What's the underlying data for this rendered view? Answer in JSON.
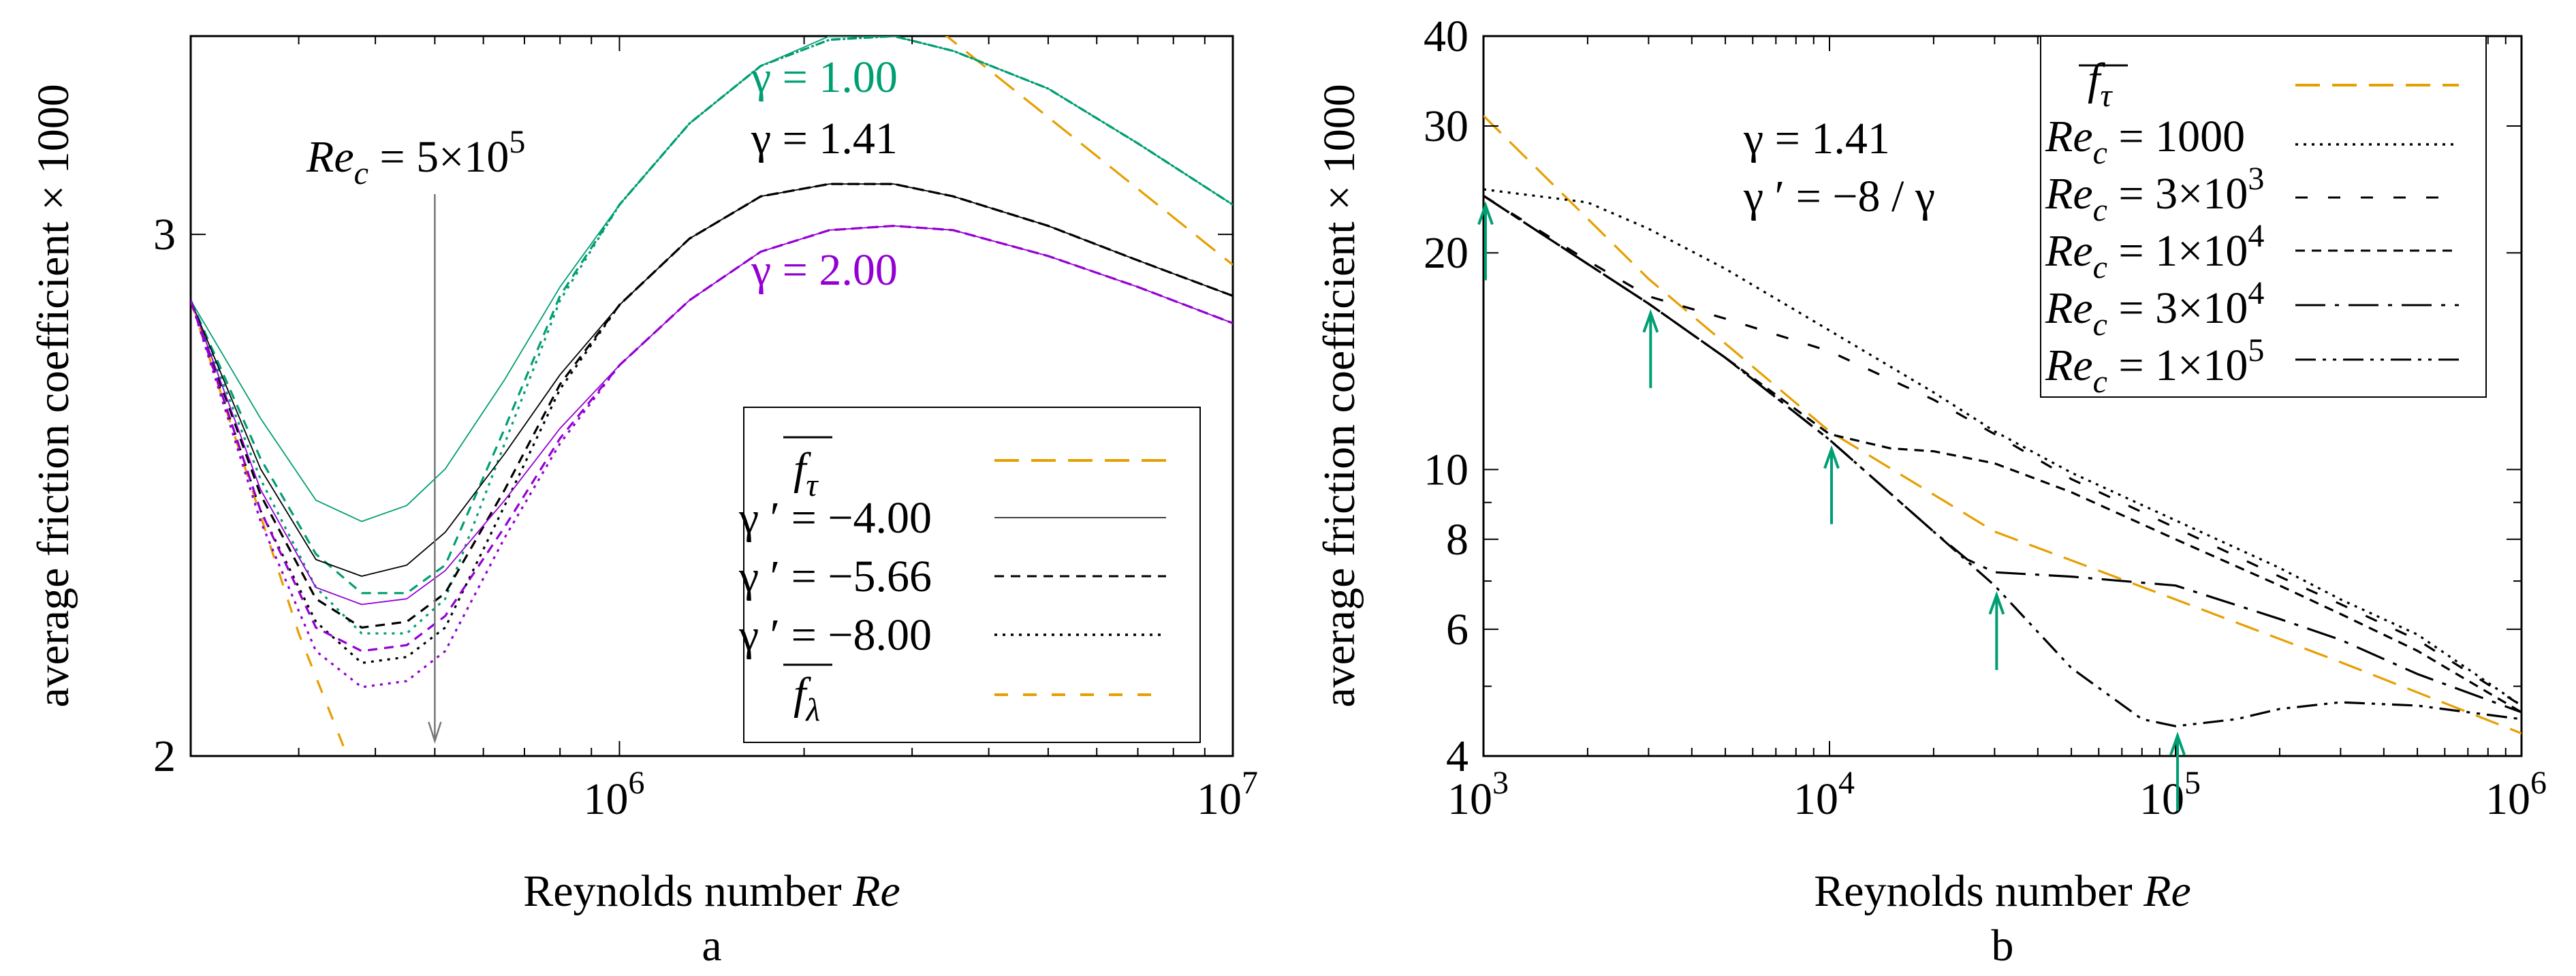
{
  "colors": {
    "orange": "#e69f00",
    "green": "#009e73",
    "purple": "#9400d3",
    "black": "#000000",
    "arrow_green": "#009e73",
    "gray": "#777777"
  },
  "chart_data": [
    {
      "id": "a",
      "type": "line",
      "panel_label": "a",
      "xlabel_text": "Reynolds number ",
      "xlabel_symbol": "Re",
      "ylabel": "average friction coefficient × 1000",
      "xscale": "log",
      "yscale": "log",
      "xlim": [
        200000,
        10000000
      ],
      "ylim": [
        2.0,
        3.5
      ],
      "xtick_labels": [
        {
          "value": 1000000,
          "base": "10",
          "exp": "6"
        },
        {
          "value": 10000000,
          "base": "10",
          "exp": "7"
        }
      ],
      "ytick_labels": [
        {
          "value": 2,
          "label": "2"
        },
        {
          "value": 3,
          "label": "3"
        }
      ],
      "transition_marker": {
        "x": 500000,
        "label_sym": "Re",
        "label_sub": "c",
        "label_rest": " = 5×10",
        "label_exp": "5"
      },
      "gamma_labels": [
        {
          "text": "γ = 1.00",
          "color": "green",
          "x": 2300000,
          "y": 3.42
        },
        {
          "text": "γ = 1.41",
          "color": "black",
          "x": 2300000,
          "y": 3.24
        },
        {
          "text": "γ = 2.00",
          "color": "purple",
          "x": 2300000,
          "y": 2.95
        }
      ],
      "legend": [
        {
          "label": "f",
          "label_sub": "τ",
          "overline": true,
          "style": "orange-dash-long"
        },
        {
          "label": "γ ′ = −4.00",
          "style": "solid-thin"
        },
        {
          "label": "γ ′ = −5.66",
          "style": "dash"
        },
        {
          "label": "γ ′ = −8.00",
          "style": "dot"
        },
        {
          "label": "f",
          "label_sub": "λ",
          "overline": true,
          "style": "orange-dash-short"
        }
      ],
      "series": [
        {
          "name": "f_tau (turbulent)",
          "color": "orange",
          "dash": "long",
          "x": [
            3300000,
            10000000
          ],
          "y": [
            3.52,
            2.93
          ]
        },
        {
          "name": "f_lambda (laminar)",
          "color": "orange",
          "dash": "short",
          "x": [
            200000,
            300000,
            360000
          ],
          "y": [
            2.85,
            2.2,
            2.0
          ]
        },
        {
          "name": "γ=1.00, γ′=−4.00",
          "color": "green",
          "dash": "thin",
          "x": [
            200000,
            260000,
            320000,
            380000,
            450000,
            520000,
            650000,
            800000,
            1000000,
            1300000,
            1700000,
            2200000,
            2800000,
            3500000,
            5000000,
            7000000,
            10000000
          ],
          "y": [
            2.85,
            2.6,
            2.44,
            2.4,
            2.43,
            2.5,
            2.68,
            2.88,
            3.07,
            3.27,
            3.42,
            3.5,
            3.5,
            3.46,
            3.36,
            3.22,
            3.07
          ]
        },
        {
          "name": "γ=1.00, γ′=−5.66",
          "color": "green",
          "dash": "dash",
          "x": [
            200000,
            260000,
            320000,
            380000,
            450000,
            520000,
            650000,
            800000,
            1000000,
            1300000,
            1700000,
            2200000,
            2800000,
            3500000,
            5000000,
            7000000,
            10000000
          ],
          "y": [
            2.85,
            2.52,
            2.34,
            2.27,
            2.27,
            2.32,
            2.58,
            2.86,
            3.07,
            3.27,
            3.42,
            3.49,
            3.5,
            3.46,
            3.36,
            3.22,
            3.07
          ]
        },
        {
          "name": "γ=1.00, γ′=−8.00",
          "color": "green",
          "dash": "dot",
          "x": [
            200000,
            260000,
            320000,
            380000,
            450000,
            520000,
            650000,
            800000,
            1000000,
            1300000,
            1700000,
            2200000,
            2800000,
            3500000,
            5000000,
            7000000,
            10000000
          ],
          "y": [
            2.85,
            2.48,
            2.28,
            2.2,
            2.2,
            2.26,
            2.55,
            2.85,
            3.07,
            3.27,
            3.42,
            3.49,
            3.5,
            3.46,
            3.36,
            3.22,
            3.07
          ]
        },
        {
          "name": "γ=1.41, γ′=−4.00",
          "color": "black",
          "dash": "thin",
          "x": [
            200000,
            260000,
            320000,
            380000,
            450000,
            520000,
            650000,
            800000,
            1000000,
            1300000,
            1700000,
            2200000,
            2800000,
            3500000,
            5000000,
            7000000,
            10000000
          ],
          "y": [
            2.85,
            2.5,
            2.33,
            2.3,
            2.32,
            2.38,
            2.53,
            2.69,
            2.84,
            2.99,
            3.09,
            3.12,
            3.12,
            3.09,
            3.02,
            2.94,
            2.86
          ]
        },
        {
          "name": "γ=1.41, γ′=−5.66",
          "color": "black",
          "dash": "dash",
          "x": [
            200000,
            260000,
            320000,
            380000,
            450000,
            520000,
            650000,
            800000,
            1000000,
            1300000,
            1700000,
            2200000,
            2800000,
            3500000,
            5000000,
            7000000,
            10000000
          ],
          "y": [
            2.85,
            2.45,
            2.26,
            2.21,
            2.22,
            2.27,
            2.46,
            2.67,
            2.84,
            2.99,
            3.09,
            3.12,
            3.12,
            3.09,
            3.02,
            2.94,
            2.86
          ]
        },
        {
          "name": "γ=1.41, γ′=−8.00",
          "color": "black",
          "dash": "dot",
          "x": [
            200000,
            260000,
            320000,
            380000,
            450000,
            520000,
            650000,
            800000,
            1000000,
            1300000,
            1700000,
            2200000,
            2800000,
            3500000,
            5000000,
            7000000,
            10000000
          ],
          "y": [
            2.85,
            2.42,
            2.22,
            2.15,
            2.16,
            2.21,
            2.43,
            2.66,
            2.84,
            2.99,
            3.09,
            3.12,
            3.12,
            3.09,
            3.02,
            2.94,
            2.86
          ]
        },
        {
          "name": "γ=2.00, γ′=−4.00",
          "color": "purple",
          "dash": "thin",
          "x": [
            200000,
            260000,
            320000,
            380000,
            450000,
            520000,
            650000,
            800000,
            1000000,
            1300000,
            1700000,
            2200000,
            2800000,
            3500000,
            5000000,
            7000000,
            10000000
          ],
          "y": [
            2.85,
            2.46,
            2.28,
            2.25,
            2.26,
            2.31,
            2.44,
            2.58,
            2.71,
            2.85,
            2.96,
            3.01,
            3.02,
            3.01,
            2.95,
            2.88,
            2.8
          ]
        },
        {
          "name": "γ=2.00, γ′=−5.66",
          "color": "purple",
          "dash": "dash",
          "x": [
            200000,
            260000,
            320000,
            380000,
            450000,
            520000,
            650000,
            800000,
            1000000,
            1300000,
            1700000,
            2200000,
            2800000,
            3500000,
            5000000,
            7000000,
            10000000
          ],
          "y": [
            2.85,
            2.42,
            2.21,
            2.17,
            2.18,
            2.23,
            2.39,
            2.56,
            2.71,
            2.85,
            2.96,
            3.01,
            3.02,
            3.01,
            2.95,
            2.88,
            2.8
          ]
        },
        {
          "name": "γ=2.00, γ′=−8.00",
          "color": "purple",
          "dash": "dot",
          "x": [
            200000,
            260000,
            320000,
            380000,
            450000,
            520000,
            650000,
            800000,
            1000000,
            1300000,
            1700000,
            2200000,
            2800000,
            3500000,
            5000000,
            7000000,
            10000000
          ],
          "y": [
            2.85,
            2.4,
            2.17,
            2.11,
            2.12,
            2.17,
            2.37,
            2.55,
            2.71,
            2.85,
            2.96,
            3.01,
            3.02,
            3.01,
            2.95,
            2.88,
            2.8
          ]
        }
      ]
    },
    {
      "id": "b",
      "type": "line",
      "panel_label": "b",
      "xlabel_text": "Reynolds number ",
      "xlabel_symbol": "Re",
      "ylabel": "average friction coefficient × 1000",
      "xscale": "log",
      "yscale": "log",
      "xlim": [
        1000,
        1000000
      ],
      "ylim": [
        4,
        40
      ],
      "xtick_labels": [
        {
          "value": 1000,
          "base": "10",
          "exp": "3"
        },
        {
          "value": 10000,
          "base": "10",
          "exp": "4"
        },
        {
          "value": 100000,
          "base": "10",
          "exp": "5"
        },
        {
          "value": 1000000,
          "base": "10",
          "exp": "6"
        }
      ],
      "ytick_labels": [
        {
          "value": 4,
          "label": "4"
        },
        {
          "value": 6,
          "label": "6"
        },
        {
          "value": 8,
          "label": "8"
        },
        {
          "value": 10,
          "label": "10"
        },
        {
          "value": 20,
          "label": "20"
        },
        {
          "value": 30,
          "label": "30"
        },
        {
          "value": 40,
          "label": "40"
        }
      ],
      "annotation": {
        "line1": "γ  = 1.41",
        "line2": "γ ′ = −8 / γ"
      },
      "transition_arrows": [
        1000,
        3000,
        10000,
        30000,
        100000
      ],
      "legend": [
        {
          "label": "f",
          "label_sub": "τ",
          "overline": true,
          "style": "orange-dash-long"
        },
        {
          "label_sym": "Re",
          "label_sub": "c",
          "label_rest": " = 1000",
          "label_exp": "",
          "style": "dot"
        },
        {
          "label_sym": "Re",
          "label_sub": "c",
          "label_rest": " = 3×10",
          "label_exp": "3",
          "style": "dash-sparse"
        },
        {
          "label_sym": "Re",
          "label_sub": "c",
          "label_rest": " = 1×10",
          "label_exp": "4",
          "style": "dash"
        },
        {
          "label_sym": "Re",
          "label_sub": "c",
          "label_rest": " = 3×10",
          "label_exp": "4",
          "style": "dashdot-long"
        },
        {
          "label_sym": "Re",
          "label_sub": "c",
          "label_rest": " = 1×10",
          "label_exp": "5",
          "style": "dashdotdot"
        }
      ],
      "series": [
        {
          "name": "f_tau",
          "color": "orange",
          "dash": "long",
          "x": [
            1000,
            3000,
            10000,
            30000,
            100000,
            300000,
            1000000
          ],
          "y": [
            31,
            18.4,
            11.3,
            8.2,
            6.6,
            5.4,
            4.3
          ]
        },
        {
          "name": "Re_c = 1000",
          "color": "black",
          "dash": "dot",
          "x": [
            1000,
            2000,
            3000,
            5000,
            10000,
            20000,
            30000,
            50000,
            100000,
            200000,
            300000,
            500000,
            1000000
          ],
          "y": [
            24.5,
            23.5,
            21.6,
            19.0,
            15.6,
            12.8,
            11.3,
            9.9,
            8.5,
            7.3,
            6.6,
            5.9,
            4.7
          ]
        },
        {
          "name": "Re_c = 3×10^3",
          "color": "black",
          "dash": "dash-sparse",
          "x": [
            1000,
            2000,
            3000,
            5000,
            10000,
            20000,
            30000,
            50000,
            100000,
            200000,
            300000,
            500000,
            1000000
          ],
          "y": [
            24.0,
            19.5,
            17.4,
            16.2,
            14.6,
            12.5,
            11.2,
            9.7,
            8.3,
            7.1,
            6.5,
            5.8,
            4.7
          ]
        },
        {
          "name": "Re_c = 1×10^4",
          "color": "black",
          "dash": "dash",
          "x": [
            1000,
            2000,
            3000,
            5000,
            10000,
            15000,
            20000,
            30000,
            50000,
            100000,
            200000,
            300000,
            500000,
            1000000
          ],
          "y": [
            24.0,
            19.3,
            17.0,
            14.3,
            11.2,
            10.7,
            10.6,
            10.2,
            9.3,
            8.0,
            6.9,
            6.3,
            5.6,
            4.6
          ]
        },
        {
          "name": "Re_c = 3×10^4",
          "color": "black",
          "dash": "dashdot",
          "x": [
            1000,
            2000,
            3000,
            5000,
            10000,
            20000,
            25000,
            30000,
            50000,
            100000,
            200000,
            300000,
            500000,
            1000000
          ],
          "y": [
            24.0,
            19.3,
            17.0,
            14.3,
            11.0,
            8.2,
            7.5,
            7.2,
            7.1,
            6.9,
            6.2,
            5.8,
            5.2,
            4.6
          ]
        },
        {
          "name": "Re_c = 1×10^5",
          "color": "black",
          "dash": "dashdotdot",
          "x": [
            1000,
            2000,
            3000,
            5000,
            10000,
            20000,
            30000,
            50000,
            80000,
            100000,
            150000,
            200000,
            300000,
            500000,
            1000000
          ],
          "y": [
            24.0,
            19.3,
            17.0,
            14.3,
            11.0,
            8.2,
            6.9,
            5.3,
            4.5,
            4.4,
            4.5,
            4.65,
            4.75,
            4.7,
            4.5
          ]
        }
      ]
    }
  ]
}
